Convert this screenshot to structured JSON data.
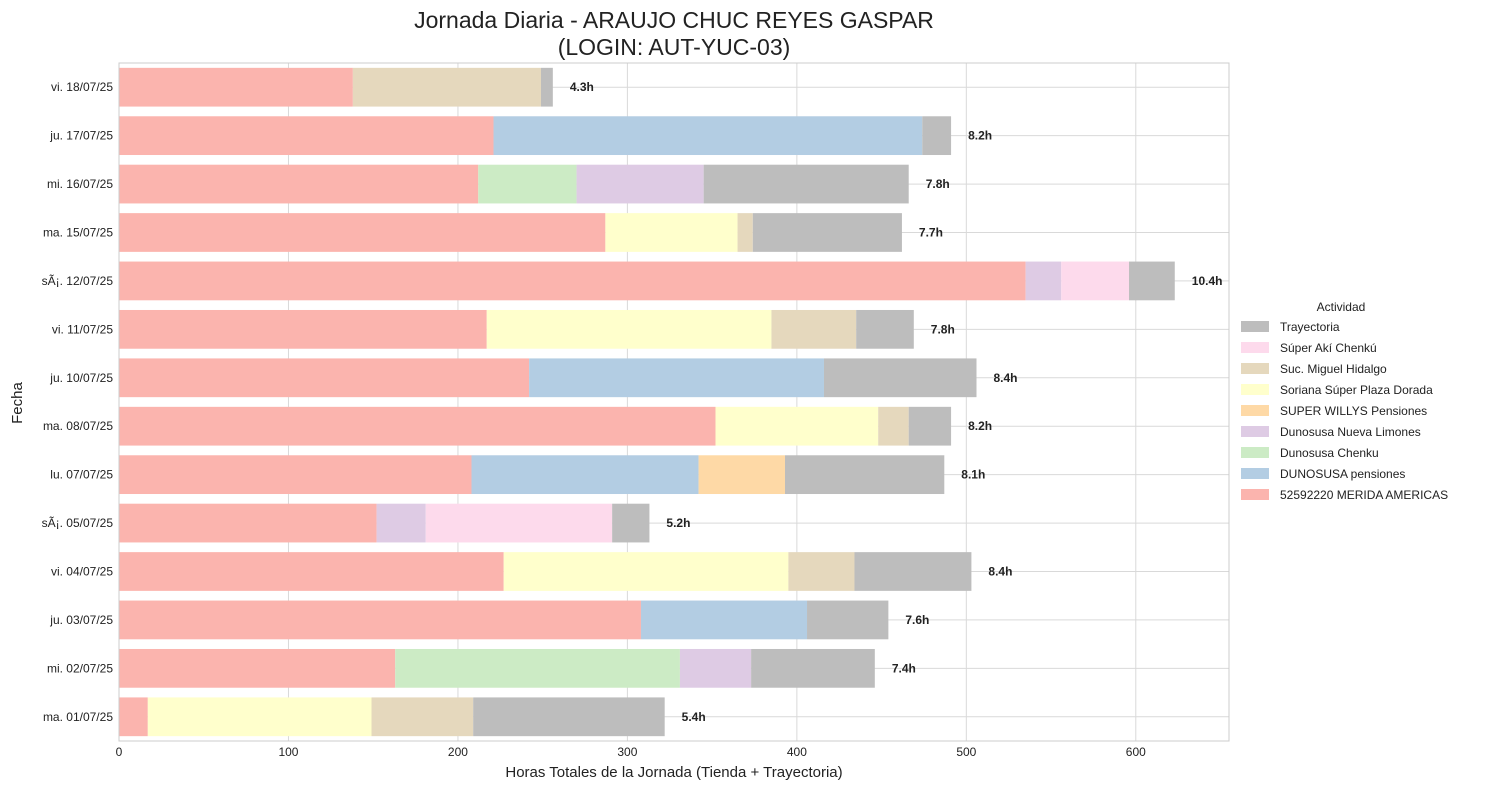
{
  "chart_data": {
    "type": "bar",
    "orientation": "horizontal",
    "stacked": true,
    "title_line1": "Jornada Diaria - ARAUJO CHUC REYES GASPAR",
    "title_line2": "(LOGIN: AUT-YUC-03)",
    "xlabel": "Horas Totales de la Jornada (Tienda + Trayectoria)",
    "ylabel": "Fecha",
    "xlim": [
      0,
      655
    ],
    "xticks": [
      0,
      100,
      200,
      300,
      400,
      500,
      600
    ],
    "grid": true,
    "legend_title": "Actividad",
    "legend_position": "right",
    "categories": [
      "vi. 18/07/25",
      "ju. 17/07/25",
      "mi. 16/07/25",
      "ma. 15/07/25",
      "sÃ¡. 12/07/25",
      "vi. 11/07/25",
      "ju. 10/07/25",
      "ma. 08/07/25",
      "lu. 07/07/25",
      "sÃ¡. 05/07/25",
      "vi. 04/07/25",
      "ju. 03/07/25",
      "mi. 02/07/25",
      "ma. 01/07/25"
    ],
    "stack_order": [
      "52592220 MERIDA AMERICAS",
      "DUNOSUSA pensiones",
      "Dunosusa Chenku",
      "Dunosusa Nueva Limones",
      "SUPER WILLYS Pensiones",
      "Soriana Súper Plaza Dorada",
      "Suc. Miguel Hidalgo",
      "Súper Akí Chenkú",
      "Trayectoria"
    ],
    "legend_order": [
      "Trayectoria",
      "Súper Akí Chenkú",
      "Suc. Miguel Hidalgo",
      "Soriana Súper Plaza Dorada",
      "SUPER WILLYS Pensiones",
      "Dunosusa Nueva Limones",
      "Dunosusa Chenku",
      "DUNOSUSA pensiones",
      "52592220 MERIDA AMERICAS"
    ],
    "colors": {
      "52592220 MERIDA AMERICAS": "#fbb4ae",
      "DUNOSUSA pensiones": "#b3cde3",
      "Dunosusa Chenku": "#ccebc5",
      "Dunosusa Nueva Limones": "#decbe4",
      "SUPER WILLYS Pensiones": "#fed9a6",
      "Soriana Súper Plaza Dorada": "#ffffcc",
      "Suc. Miguel Hidalgo": "#e5d8bd",
      "Súper Akí Chenkú": "#fddaec",
      "Trayectoria": "#bdbdbd"
    },
    "series": [
      {
        "name": "52592220 MERIDA AMERICAS",
        "values": [
          138,
          221,
          212,
          287,
          535,
          217,
          242,
          352,
          208,
          152,
          227,
          308,
          163,
          17
        ]
      },
      {
        "name": "DUNOSUSA pensiones",
        "values": [
          0,
          253,
          0,
          0,
          0,
          0,
          174,
          0,
          134,
          0,
          0,
          98,
          0,
          0
        ]
      },
      {
        "name": "Dunosusa Chenku",
        "values": [
          0,
          0,
          58,
          0,
          0,
          0,
          0,
          0,
          0,
          0,
          0,
          0,
          168,
          0
        ]
      },
      {
        "name": "Dunosusa Nueva Limones",
        "values": [
          0,
          0,
          75,
          0,
          21,
          0,
          0,
          0,
          0,
          29,
          0,
          0,
          42,
          0
        ]
      },
      {
        "name": "SUPER WILLYS Pensiones",
        "values": [
          0,
          0,
          0,
          0,
          0,
          0,
          0,
          0,
          51,
          0,
          0,
          0,
          0,
          0
        ]
      },
      {
        "name": "Soriana Súper Plaza Dorada",
        "values": [
          0,
          0,
          0,
          78,
          0,
          168,
          0,
          96,
          0,
          0,
          168,
          0,
          0,
          132
        ]
      },
      {
        "name": "Suc. Miguel Hidalgo",
        "values": [
          111,
          0,
          0,
          9,
          0,
          50,
          0,
          18,
          0,
          0,
          39,
          0,
          0,
          60
        ]
      },
      {
        "name": "Súper Akí Chenkú",
        "values": [
          0,
          0,
          0,
          0,
          40,
          0,
          0,
          0,
          0,
          110,
          0,
          0,
          0,
          0
        ]
      },
      {
        "name": "Trayectoria",
        "values": [
          7,
          17,
          121,
          88,
          27,
          34,
          90,
          25,
          94,
          22,
          69,
          48,
          73,
          113
        ]
      }
    ],
    "totals": [
      256,
      491,
      466,
      462,
      623,
      469,
      506,
      491,
      487,
      313,
      503,
      454,
      446,
      322
    ],
    "total_labels": [
      "4.3h",
      "8.2h",
      "7.8h",
      "7.7h",
      "10.4h",
      "7.8h",
      "8.4h",
      "8.2h",
      "8.1h",
      "5.2h",
      "8.4h",
      "7.6h",
      "7.4h",
      "5.4h"
    ]
  }
}
